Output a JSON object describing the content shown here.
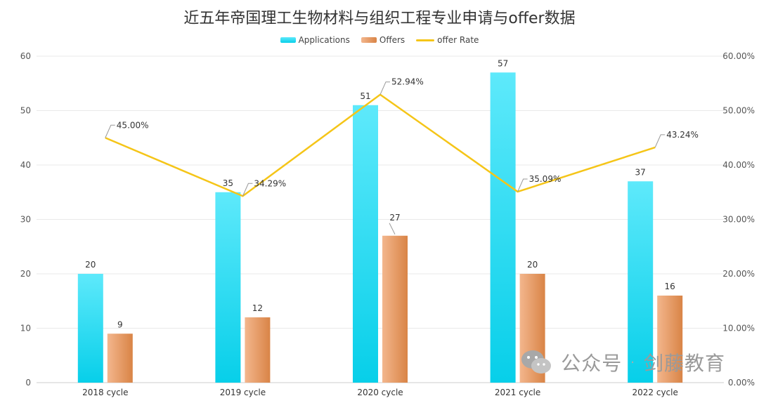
{
  "chart_data": {
    "type": "bar+line",
    "title": "近五年帝国理工生物材料与组织工程专业申请与offer数据",
    "categories": [
      "2018 cycle",
      "2019 cycle",
      "2020 cycle",
      "2021 cycle",
      "2022 cycle"
    ],
    "series": [
      {
        "name": "Applications",
        "type": "bar",
        "values": [
          20,
          35,
          51,
          57,
          37
        ]
      },
      {
        "name": "Offers",
        "type": "bar",
        "values": [
          9,
          12,
          27,
          20,
          16
        ]
      },
      {
        "name": "offer Rate",
        "type": "line",
        "axis": "right",
        "values": [
          45.0,
          34.29,
          52.94,
          35.09,
          43.24
        ]
      }
    ],
    "y_left": {
      "min": 0,
      "max": 60,
      "ticks": [
        "0",
        "10",
        "20",
        "30",
        "40",
        "50",
        "60"
      ]
    },
    "y_right": {
      "min": 0,
      "max": 60,
      "ticks": [
        "0.00%",
        "10.00%",
        "20.00%",
        "30.00%",
        "40.00%",
        "50.00%",
        "60.00%"
      ]
    },
    "rate_labels": [
      "45.00%",
      "34.29%",
      "52.94%",
      "35.09%",
      "43.24%"
    ],
    "legend": [
      "Applications",
      "Offers",
      "offer Rate"
    ],
    "colors": {
      "applications_top": "#5ee9fb",
      "applications_bottom": "#07cfe9",
      "offers_light": "#f3b68d",
      "offers_dark": "#d98446",
      "rate": "#f5c518",
      "grid": "#e9e9e9",
      "axis_text": "#555555"
    }
  },
  "watermark": {
    "text1": "公众号",
    "dot": "·",
    "text2": "剑藤教育"
  }
}
